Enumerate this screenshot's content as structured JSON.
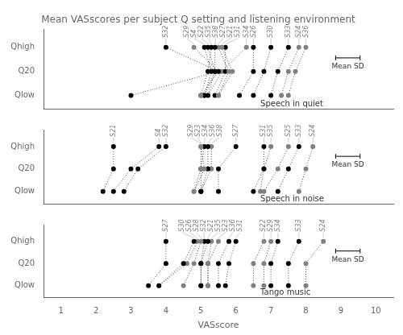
{
  "chart_data": [
    {
      "type": "scatter",
      "title": "Mean VASscores per subject Q setting and listening environment",
      "subtitle": "Speech in quiet",
      "xlim": [
        0.5,
        10.5
      ],
      "xticks": [
        1,
        2,
        3,
        4,
        5,
        6,
        7,
        8,
        9,
        10
      ],
      "ylim": [
        -0.55,
        2.75
      ],
      "yticks": [
        {
          "value": 2,
          "label": "Qhigh"
        },
        {
          "value": 1,
          "label": "Q20"
        },
        {
          "value": 0,
          "label": "Qlow"
        }
      ],
      "tick_labels": "y",
      "grid": false,
      "legend": "none",
      "line_style": "dotted",
      "marker": "circle",
      "error_bar": {
        "label": "Mean SD",
        "value": 0.35
      },
      "series": [
        {
          "name": "S32",
          "color": "black",
          "x": [
            4.0,
            5.5,
            3.0
          ],
          "y": [
            2,
            1,
            0
          ]
        },
        {
          "name": "S29",
          "color": "gray",
          "x": [
            4.8,
            5.5,
            5.0
          ],
          "y": [
            2,
            1,
            0
          ]
        },
        {
          "name": "S4",
          "color": "black",
          "x": [
            5.1,
            5.3,
            5.1
          ],
          "y": [
            2,
            1,
            0
          ]
        },
        {
          "name": "S22",
          "color": "black",
          "x": [
            5.2,
            5.4,
            5.2
          ],
          "y": [
            2,
            1,
            0
          ]
        },
        {
          "name": "S35",
          "color": "black",
          "x": [
            5.3,
            5.2,
            5.0
          ],
          "y": [
            2,
            1,
            0
          ]
        },
        {
          "name": "S38",
          "color": "black",
          "x": [
            5.4,
            5.4,
            5.1
          ],
          "y": [
            2,
            1,
            0
          ]
        },
        {
          "name": "S27",
          "color": "gray",
          "x": [
            5.5,
            5.8,
            5.5
          ],
          "y": [
            2,
            1,
            0
          ]
        },
        {
          "name": "S21",
          "color": "gray",
          "x": [
            5.6,
            5.9,
            5.5
          ],
          "y": [
            2,
            1,
            0
          ]
        },
        {
          "name": "S31",
          "color": "black",
          "x": [
            5.7,
            5.7,
            5.4
          ],
          "y": [
            2,
            1,
            0
          ]
        },
        {
          "name": "S34",
          "color": "gray",
          "x": [
            6.3,
            5.6,
            5.2
          ],
          "y": [
            2,
            1,
            0
          ]
        },
        {
          "name": "S26",
          "color": "black",
          "x": [
            6.5,
            6.5,
            6.1
          ],
          "y": [
            2,
            1,
            0
          ]
        },
        {
          "name": "S30",
          "color": "black",
          "x": [
            7.0,
            6.8,
            6.5
          ],
          "y": [
            2,
            1,
            0
          ]
        },
        {
          "name": "S33",
          "color": "black",
          "x": [
            7.5,
            7.2,
            7.0
          ],
          "y": [
            2,
            1,
            0
          ]
        },
        {
          "name": "S24",
          "color": "gray",
          "x": [
            7.8,
            7.5,
            7.3
          ],
          "y": [
            2,
            1,
            0
          ]
        },
        {
          "name": "S36",
          "color": "gray",
          "x": [
            8.0,
            7.7,
            7.5
          ],
          "y": [
            2,
            1,
            0
          ]
        }
      ]
    },
    {
      "type": "scatter",
      "subtitle": "Speech in noise",
      "xlim": [
        0.5,
        10.5
      ],
      "xticks": [
        1,
        2,
        3,
        4,
        5,
        6,
        7,
        8,
        9,
        10
      ],
      "ylim": [
        -0.55,
        2.75
      ],
      "yticks": [
        {
          "value": 2,
          "label": "Qhigh"
        },
        {
          "value": 1,
          "label": "Q20"
        },
        {
          "value": 0,
          "label": "Qlow"
        }
      ],
      "tick_labels": "y",
      "grid": false,
      "legend": "none",
      "line_style": "dotted",
      "marker": "circle",
      "error_bar": {
        "label": "Mean SD",
        "value": 0.35
      },
      "series": [
        {
          "name": "S21",
          "color": "black",
          "x": [
            2.5,
            2.5,
            2.2
          ],
          "y": [
            2,
            1,
            0
          ]
        },
        {
          "name": "S4",
          "color": "black",
          "x": [
            3.8,
            3.0,
            2.5
          ],
          "y": [
            2,
            1,
            0
          ]
        },
        {
          "name": "S32",
          "color": "black",
          "x": [
            4.0,
            3.2,
            2.8
          ],
          "y": [
            2,
            1,
            0
          ]
        },
        {
          "name": "S29",
          "color": "gray",
          "x": [
            5.0,
            5.0,
            4.8
          ],
          "y": [
            2,
            1,
            0
          ]
        },
        {
          "name": "S23",
          "color": "gray",
          "x": [
            5.0,
            5.1,
            4.8
          ],
          "y": [
            2,
            1,
            0
          ]
        },
        {
          "name": "S34",
          "color": "black",
          "x": [
            5.1,
            5.0,
            5.0
          ],
          "y": [
            2,
            1,
            0
          ]
        },
        {
          "name": "S36",
          "color": "black",
          "x": [
            5.2,
            5.2,
            5.0
          ],
          "y": [
            2,
            1,
            0
          ]
        },
        {
          "name": "S38",
          "color": "gray",
          "x": [
            5.3,
            5.3,
            5.0
          ],
          "y": [
            2,
            1,
            0
          ]
        },
        {
          "name": "S27",
          "color": "black",
          "x": [
            6.0,
            5.5,
            5.5
          ],
          "y": [
            2,
            1,
            0
          ]
        },
        {
          "name": "S31",
          "color": "black",
          "x": [
            6.8,
            6.8,
            6.5
          ],
          "y": [
            2,
            1,
            0
          ]
        },
        {
          "name": "S35",
          "color": "gray",
          "x": [
            7.0,
            6.8,
            6.7
          ],
          "y": [
            2,
            1,
            0
          ]
        },
        {
          "name": "S25",
          "color": "gray",
          "x": [
            7.5,
            7.2,
            6.8
          ],
          "y": [
            2,
            1,
            0
          ]
        },
        {
          "name": "S33",
          "color": "black",
          "x": [
            7.8,
            7.5,
            7.2
          ],
          "y": [
            2,
            1,
            0
          ]
        },
        {
          "name": "S24",
          "color": "gray",
          "x": [
            8.2,
            8.0,
            7.8
          ],
          "y": [
            2,
            1,
            0
          ]
        }
      ]
    },
    {
      "type": "scatter",
      "subtitle": "Tango music",
      "xlabel": "VASscore",
      "xlim": [
        0.5,
        10.5
      ],
      "xticks": [
        1,
        2,
        3,
        4,
        5,
        6,
        7,
        8,
        9,
        10
      ],
      "ylim": [
        -0.55,
        2.75
      ],
      "yticks": [
        {
          "value": 2,
          "label": "Qhigh"
        },
        {
          "value": 1,
          "label": "Q20"
        },
        {
          "value": 0,
          "label": "Qlow"
        }
      ],
      "tick_labels": true,
      "grid": false,
      "legend": "none",
      "line_style": "dotted",
      "marker": "circle",
      "error_bar": {
        "label": "Mean SD",
        "value": 0.35
      },
      "series": [
        {
          "name": "S27",
          "color": "black",
          "x": [
            4.0,
            4.0,
            3.5
          ],
          "y": [
            2,
            1,
            0
          ]
        },
        {
          "name": "S30",
          "color": "black",
          "x": [
            4.8,
            4.5,
            3.8
          ],
          "y": [
            2,
            1,
            0
          ]
        },
        {
          "name": "S26",
          "color": "gray",
          "x": [
            4.9,
            4.6,
            3.8
          ],
          "y": [
            2,
            1,
            0
          ]
        },
        {
          "name": "S28",
          "color": "gray",
          "x": [
            5.0,
            4.8,
            4.5
          ],
          "y": [
            2,
            1,
            0
          ]
        },
        {
          "name": "S32",
          "color": "black",
          "x": [
            5.1,
            5.0,
            5.0
          ],
          "y": [
            2,
            1,
            0
          ]
        },
        {
          "name": "S21",
          "color": "black",
          "x": [
            5.2,
            5.0,
            5.0
          ],
          "y": [
            2,
            1,
            0
          ]
        },
        {
          "name": "S35",
          "color": "gray",
          "x": [
            5.3,
            5.2,
            5.2
          ],
          "y": [
            2,
            1,
            0
          ]
        },
        {
          "name": "S23",
          "color": "gray",
          "x": [
            5.5,
            5.2,
            5.2
          ],
          "y": [
            2,
            1,
            0
          ]
        },
        {
          "name": "S36",
          "color": "black",
          "x": [
            5.8,
            5.5,
            5.5
          ],
          "y": [
            2,
            1,
            0
          ]
        },
        {
          "name": "S31",
          "color": "black",
          "x": [
            6.0,
            5.8,
            5.7
          ],
          "y": [
            2,
            1,
            0
          ]
        },
        {
          "name": "S22",
          "color": "gray",
          "x": [
            6.8,
            6.5,
            6.5
          ],
          "y": [
            2,
            1,
            0
          ]
        },
        {
          "name": "S29",
          "color": "gray",
          "x": [
            7.0,
            6.8,
            6.8
          ],
          "y": [
            2,
            1,
            0
          ]
        },
        {
          "name": "S34",
          "color": "black",
          "x": [
            7.2,
            7.0,
            7.0
          ],
          "y": [
            2,
            1,
            0
          ]
        },
        {
          "name": "S33",
          "color": "black",
          "x": [
            7.8,
            7.5,
            7.5
          ],
          "y": [
            2,
            1,
            0
          ]
        },
        {
          "name": "S24",
          "color": "gray",
          "x": [
            8.5,
            8.0,
            8.0
          ],
          "y": [
            2,
            1,
            0
          ]
        }
      ]
    }
  ]
}
